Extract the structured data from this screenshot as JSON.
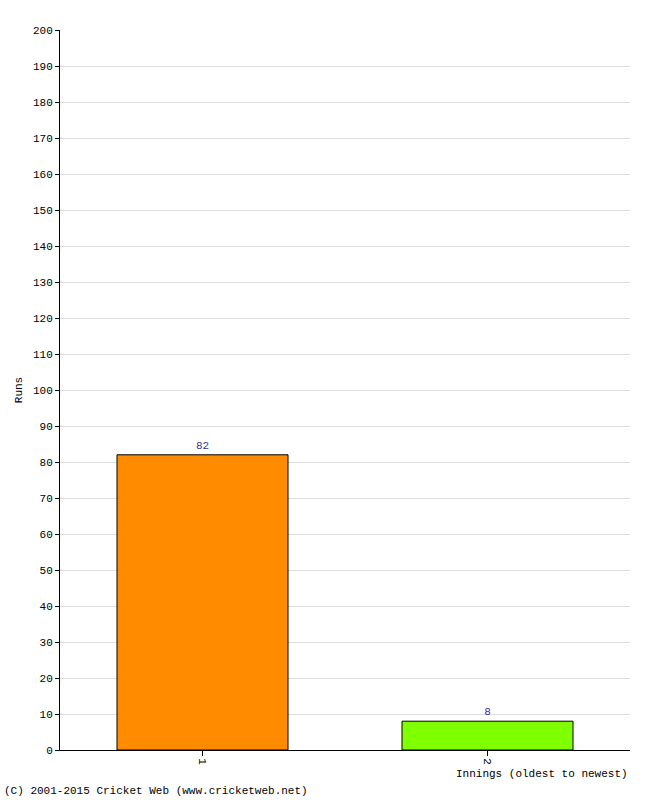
{
  "chart_data": {
    "type": "bar",
    "x_label": "Innings (oldest to newest)",
    "y_label": "Runs",
    "categories": [
      "1",
      "2"
    ],
    "values": [
      82,
      8
    ],
    "colors": [
      "#ff8c00",
      "#80ff00"
    ],
    "ylim": [
      0,
      200
    ],
    "yticks": [
      0,
      10,
      20,
      30,
      40,
      50,
      60,
      70,
      80,
      90,
      100,
      110,
      120,
      130,
      140,
      150,
      160,
      170,
      180,
      190,
      200
    ],
    "grid": true,
    "data_labels": true,
    "annotations": [
      "(C) 2001-2015 Cricket Web (www.cricketweb.net)"
    ]
  }
}
